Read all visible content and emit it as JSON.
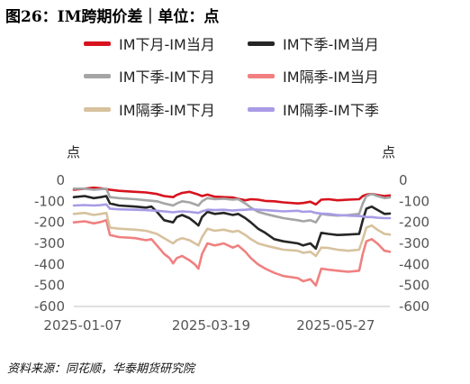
{
  "title": "图26：IM跨期价差｜单位：点",
  "source": "资料来源：同花顺，华泰期货研究院",
  "chart_data": {
    "type": "line",
    "ylabel_left": "点",
    "ylabel_right": "点",
    "ylim": [
      -600,
      0
    ],
    "yticks": [
      0,
      -100,
      -200,
      -300,
      -400,
      -500,
      -600
    ],
    "xlim": [
      "2025-01-02",
      "2025-06-26"
    ],
    "xticks": [
      "2025-01-07",
      "2025-03-19",
      "2025-05-27"
    ],
    "legend_position": "top",
    "grid": false,
    "series": [
      {
        "name": "IM下月-IM当月",
        "color": "#d7131e",
        "points": [
          [
            "2025-01-02",
            -45
          ],
          [
            "2025-01-08",
            -40
          ],
          [
            "2025-01-13",
            -35
          ],
          [
            "2025-01-17",
            -38
          ],
          [
            "2025-01-22",
            -45
          ],
          [
            "2025-01-27",
            -50
          ],
          [
            "2025-02-05",
            -55
          ],
          [
            "2025-02-11",
            -58
          ],
          [
            "2025-02-17",
            -65
          ],
          [
            "2025-02-21",
            -75
          ],
          [
            "2025-02-26",
            -80
          ],
          [
            "2025-02-28",
            -70
          ],
          [
            "2025-03-03",
            -60
          ],
          [
            "2025-03-07",
            -55
          ],
          [
            "2025-03-11",
            -65
          ],
          [
            "2025-03-14",
            -75
          ],
          [
            "2025-03-17",
            -68
          ],
          [
            "2025-03-21",
            -78
          ],
          [
            "2025-03-26",
            -80
          ],
          [
            "2025-03-31",
            -82
          ],
          [
            "2025-04-03",
            -88
          ],
          [
            "2025-04-07",
            -95
          ],
          [
            "2025-04-10",
            -90
          ],
          [
            "2025-04-14",
            -92
          ],
          [
            "2025-04-18",
            -98
          ],
          [
            "2025-04-23",
            -100
          ],
          [
            "2025-04-28",
            -105
          ],
          [
            "2025-05-06",
            -110
          ],
          [
            "2025-05-09",
            -108
          ],
          [
            "2025-05-13",
            -102
          ],
          [
            "2025-05-16",
            -115
          ],
          [
            "2025-05-19",
            -92
          ],
          [
            "2025-05-23",
            -90
          ],
          [
            "2025-05-28",
            -95
          ],
          [
            "2025-06-03",
            -92
          ],
          [
            "2025-06-09",
            -90
          ],
          [
            "2025-06-11",
            -75
          ],
          [
            "2025-06-13",
            -68
          ],
          [
            "2025-06-16",
            -65
          ],
          [
            "2025-06-19",
            -70
          ],
          [
            "2025-06-23",
            -75
          ],
          [
            "2025-06-26",
            -72
          ]
        ]
      },
      {
        "name": "IM下季-IM当月",
        "color": "#262626",
        "points": [
          [
            "2025-01-02",
            -80
          ],
          [
            "2025-01-08",
            -75
          ],
          [
            "2025-01-13",
            -85
          ],
          [
            "2025-01-17",
            -80
          ],
          [
            "2025-01-20",
            -75
          ],
          [
            "2025-01-22",
            -110
          ],
          [
            "2025-01-27",
            -120
          ],
          [
            "2025-02-05",
            -125
          ],
          [
            "2025-02-11",
            -130
          ],
          [
            "2025-02-14",
            -125
          ],
          [
            "2025-02-17",
            -150
          ],
          [
            "2025-02-21",
            -190
          ],
          [
            "2025-02-26",
            -200
          ],
          [
            "2025-02-28",
            -175
          ],
          [
            "2025-03-03",
            -165
          ],
          [
            "2025-03-07",
            -180
          ],
          [
            "2025-03-10",
            -200
          ],
          [
            "2025-03-12",
            -215
          ],
          [
            "2025-03-14",
            -175
          ],
          [
            "2025-03-17",
            -150
          ],
          [
            "2025-03-21",
            -160
          ],
          [
            "2025-03-26",
            -155
          ],
          [
            "2025-03-31",
            -165
          ],
          [
            "2025-04-03",
            -160
          ],
          [
            "2025-04-07",
            -180
          ],
          [
            "2025-04-10",
            -200
          ],
          [
            "2025-04-14",
            -230
          ],
          [
            "2025-04-18",
            -250
          ],
          [
            "2025-04-23",
            -280
          ],
          [
            "2025-04-28",
            -290
          ],
          [
            "2025-05-06",
            -300
          ],
          [
            "2025-05-09",
            -310
          ],
          [
            "2025-05-13",
            -300
          ],
          [
            "2025-05-16",
            -325
          ],
          [
            "2025-05-19",
            -250
          ],
          [
            "2025-05-23",
            -255
          ],
          [
            "2025-05-28",
            -260
          ],
          [
            "2025-06-03",
            -258
          ],
          [
            "2025-06-09",
            -255
          ],
          [
            "2025-06-11",
            -190
          ],
          [
            "2025-06-13",
            -135
          ],
          [
            "2025-06-16",
            -125
          ],
          [
            "2025-06-19",
            -140
          ],
          [
            "2025-06-23",
            -160
          ],
          [
            "2025-06-26",
            -158
          ]
        ]
      },
      {
        "name": "IM下季-IM下月",
        "color": "#a5a5a5",
        "points": [
          [
            "2025-01-02",
            -40
          ],
          [
            "2025-01-08",
            -40
          ],
          [
            "2025-01-13",
            -45
          ],
          [
            "2025-01-17",
            -42
          ],
          [
            "2025-01-20",
            -40
          ],
          [
            "2025-01-22",
            -80
          ],
          [
            "2025-01-27",
            -85
          ],
          [
            "2025-02-05",
            -90
          ],
          [
            "2025-02-11",
            -95
          ],
          [
            "2025-02-17",
            -100
          ],
          [
            "2025-02-21",
            -110
          ],
          [
            "2025-02-26",
            -120
          ],
          [
            "2025-02-28",
            -110
          ],
          [
            "2025-03-03",
            -100
          ],
          [
            "2025-03-07",
            -105
          ],
          [
            "2025-03-12",
            -120
          ],
          [
            "2025-03-14",
            -100
          ],
          [
            "2025-03-17",
            -85
          ],
          [
            "2025-03-21",
            -90
          ],
          [
            "2025-03-26",
            -88
          ],
          [
            "2025-03-31",
            -92
          ],
          [
            "2025-04-03",
            -90
          ],
          [
            "2025-04-07",
            -110
          ],
          [
            "2025-04-10",
            -130
          ],
          [
            "2025-04-14",
            -150
          ],
          [
            "2025-04-18",
            -160
          ],
          [
            "2025-04-23",
            -170
          ],
          [
            "2025-04-28",
            -180
          ],
          [
            "2025-05-06",
            -190
          ],
          [
            "2025-05-09",
            -195
          ],
          [
            "2025-05-13",
            -190
          ],
          [
            "2025-05-16",
            -200
          ],
          [
            "2025-05-19",
            -160
          ],
          [
            "2025-05-23",
            -165
          ],
          [
            "2025-05-28",
            -168
          ],
          [
            "2025-06-03",
            -165
          ],
          [
            "2025-06-09",
            -160
          ],
          [
            "2025-06-11",
            -110
          ],
          [
            "2025-06-13",
            -75
          ],
          [
            "2025-06-16",
            -65
          ],
          [
            "2025-06-19",
            -75
          ],
          [
            "2025-06-23",
            -85
          ],
          [
            "2025-06-26",
            -82
          ]
        ]
      },
      {
        "name": "IM隔季-IM当月",
        "color": "#f08080",
        "points": [
          [
            "2025-01-02",
            -200
          ],
          [
            "2025-01-08",
            -195
          ],
          [
            "2025-01-13",
            -205
          ],
          [
            "2025-01-17",
            -198
          ],
          [
            "2025-01-20",
            -190
          ],
          [
            "2025-01-22",
            -260
          ],
          [
            "2025-01-27",
            -270
          ],
          [
            "2025-02-05",
            -275
          ],
          [
            "2025-02-11",
            -285
          ],
          [
            "2025-02-14",
            -280
          ],
          [
            "2025-02-17",
            -310
          ],
          [
            "2025-02-21",
            -350
          ],
          [
            "2025-02-24",
            -370
          ],
          [
            "2025-02-26",
            -395
          ],
          [
            "2025-02-28",
            -370
          ],
          [
            "2025-03-03",
            -360
          ],
          [
            "2025-03-07",
            -380
          ],
          [
            "2025-03-10",
            -400
          ],
          [
            "2025-03-12",
            -420
          ],
          [
            "2025-03-14",
            -350
          ],
          [
            "2025-03-17",
            -300
          ],
          [
            "2025-03-21",
            -310
          ],
          [
            "2025-03-26",
            -300
          ],
          [
            "2025-03-31",
            -320
          ],
          [
            "2025-04-03",
            -310
          ],
          [
            "2025-04-07",
            -340
          ],
          [
            "2025-04-10",
            -370
          ],
          [
            "2025-04-14",
            -400
          ],
          [
            "2025-04-18",
            -420
          ],
          [
            "2025-04-23",
            -440
          ],
          [
            "2025-04-28",
            -455
          ],
          [
            "2025-05-06",
            -465
          ],
          [
            "2025-05-09",
            -480
          ],
          [
            "2025-05-13",
            -470
          ],
          [
            "2025-05-16",
            -500
          ],
          [
            "2025-05-19",
            -420
          ],
          [
            "2025-05-23",
            -425
          ],
          [
            "2025-05-28",
            -430
          ],
          [
            "2025-06-03",
            -435
          ],
          [
            "2025-06-09",
            -430
          ],
          [
            "2025-06-11",
            -350
          ],
          [
            "2025-06-13",
            -290
          ],
          [
            "2025-06-16",
            -280
          ],
          [
            "2025-06-19",
            -300
          ],
          [
            "2025-06-23",
            -335
          ],
          [
            "2025-06-26",
            -340
          ]
        ]
      },
      {
        "name": "IM隔季-IM下月",
        "color": "#d7c29e",
        "points": [
          [
            "2025-01-02",
            -160
          ],
          [
            "2025-01-08",
            -155
          ],
          [
            "2025-01-13",
            -165
          ],
          [
            "2025-01-17",
            -160
          ],
          [
            "2025-01-20",
            -155
          ],
          [
            "2025-01-22",
            -225
          ],
          [
            "2025-01-27",
            -230
          ],
          [
            "2025-02-05",
            -235
          ],
          [
            "2025-02-11",
            -240
          ],
          [
            "2025-02-17",
            -255
          ],
          [
            "2025-02-21",
            -275
          ],
          [
            "2025-02-26",
            -300
          ],
          [
            "2025-02-28",
            -285
          ],
          [
            "2025-03-03",
            -275
          ],
          [
            "2025-03-07",
            -285
          ],
          [
            "2025-03-12",
            -310
          ],
          [
            "2025-03-14",
            -270
          ],
          [
            "2025-03-17",
            -230
          ],
          [
            "2025-03-21",
            -240
          ],
          [
            "2025-03-26",
            -235
          ],
          [
            "2025-03-31",
            -245
          ],
          [
            "2025-04-03",
            -240
          ],
          [
            "2025-04-07",
            -260
          ],
          [
            "2025-04-10",
            -280
          ],
          [
            "2025-04-14",
            -300
          ],
          [
            "2025-04-18",
            -310
          ],
          [
            "2025-04-23",
            -320
          ],
          [
            "2025-04-28",
            -330
          ],
          [
            "2025-05-06",
            -335
          ],
          [
            "2025-05-09",
            -345
          ],
          [
            "2025-05-13",
            -340
          ],
          [
            "2025-05-16",
            -360
          ],
          [
            "2025-05-19",
            -320
          ],
          [
            "2025-05-23",
            -322
          ],
          [
            "2025-05-28",
            -330
          ],
          [
            "2025-06-03",
            -335
          ],
          [
            "2025-06-09",
            -330
          ],
          [
            "2025-06-11",
            -280
          ],
          [
            "2025-06-13",
            -225
          ],
          [
            "2025-06-16",
            -215
          ],
          [
            "2025-06-19",
            -235
          ],
          [
            "2025-06-23",
            -255
          ],
          [
            "2025-06-26",
            -258
          ]
        ]
      },
      {
        "name": "IM隔季-IM下季",
        "color": "#a99be6",
        "points": [
          [
            "2025-01-02",
            -120
          ],
          [
            "2025-01-08",
            -118
          ],
          [
            "2025-01-13",
            -120
          ],
          [
            "2025-01-17",
            -118
          ],
          [
            "2025-01-20",
            -115
          ],
          [
            "2025-01-22",
            -135
          ],
          [
            "2025-01-27",
            -138
          ],
          [
            "2025-02-05",
            -140
          ],
          [
            "2025-02-11",
            -142
          ],
          [
            "2025-02-17",
            -145
          ],
          [
            "2025-02-21",
            -148
          ],
          [
            "2025-02-26",
            -152
          ],
          [
            "2025-02-28",
            -150
          ],
          [
            "2025-03-03",
            -148
          ],
          [
            "2025-03-07",
            -150
          ],
          [
            "2025-03-12",
            -155
          ],
          [
            "2025-03-14",
            -148
          ],
          [
            "2025-03-17",
            -140
          ],
          [
            "2025-03-21",
            -142
          ],
          [
            "2025-03-26",
            -140
          ],
          [
            "2025-03-31",
            -144
          ],
          [
            "2025-04-03",
            -142
          ],
          [
            "2025-04-07",
            -140
          ],
          [
            "2025-04-10",
            -138
          ],
          [
            "2025-04-14",
            -140
          ],
          [
            "2025-04-18",
            -142
          ],
          [
            "2025-04-23",
            -145
          ],
          [
            "2025-04-28",
            -148
          ],
          [
            "2025-05-06",
            -145
          ],
          [
            "2025-05-09",
            -150
          ],
          [
            "2025-05-13",
            -148
          ],
          [
            "2025-05-16",
            -155
          ],
          [
            "2025-05-19",
            -158
          ],
          [
            "2025-05-23",
            -160
          ],
          [
            "2025-05-28",
            -165
          ],
          [
            "2025-06-03",
            -168
          ],
          [
            "2025-06-09",
            -170
          ],
          [
            "2025-06-11",
            -172
          ],
          [
            "2025-06-13",
            -175
          ],
          [
            "2025-06-16",
            -175
          ],
          [
            "2025-06-19",
            -178
          ],
          [
            "2025-06-23",
            -180
          ],
          [
            "2025-06-26",
            -180
          ]
        ]
      }
    ]
  }
}
